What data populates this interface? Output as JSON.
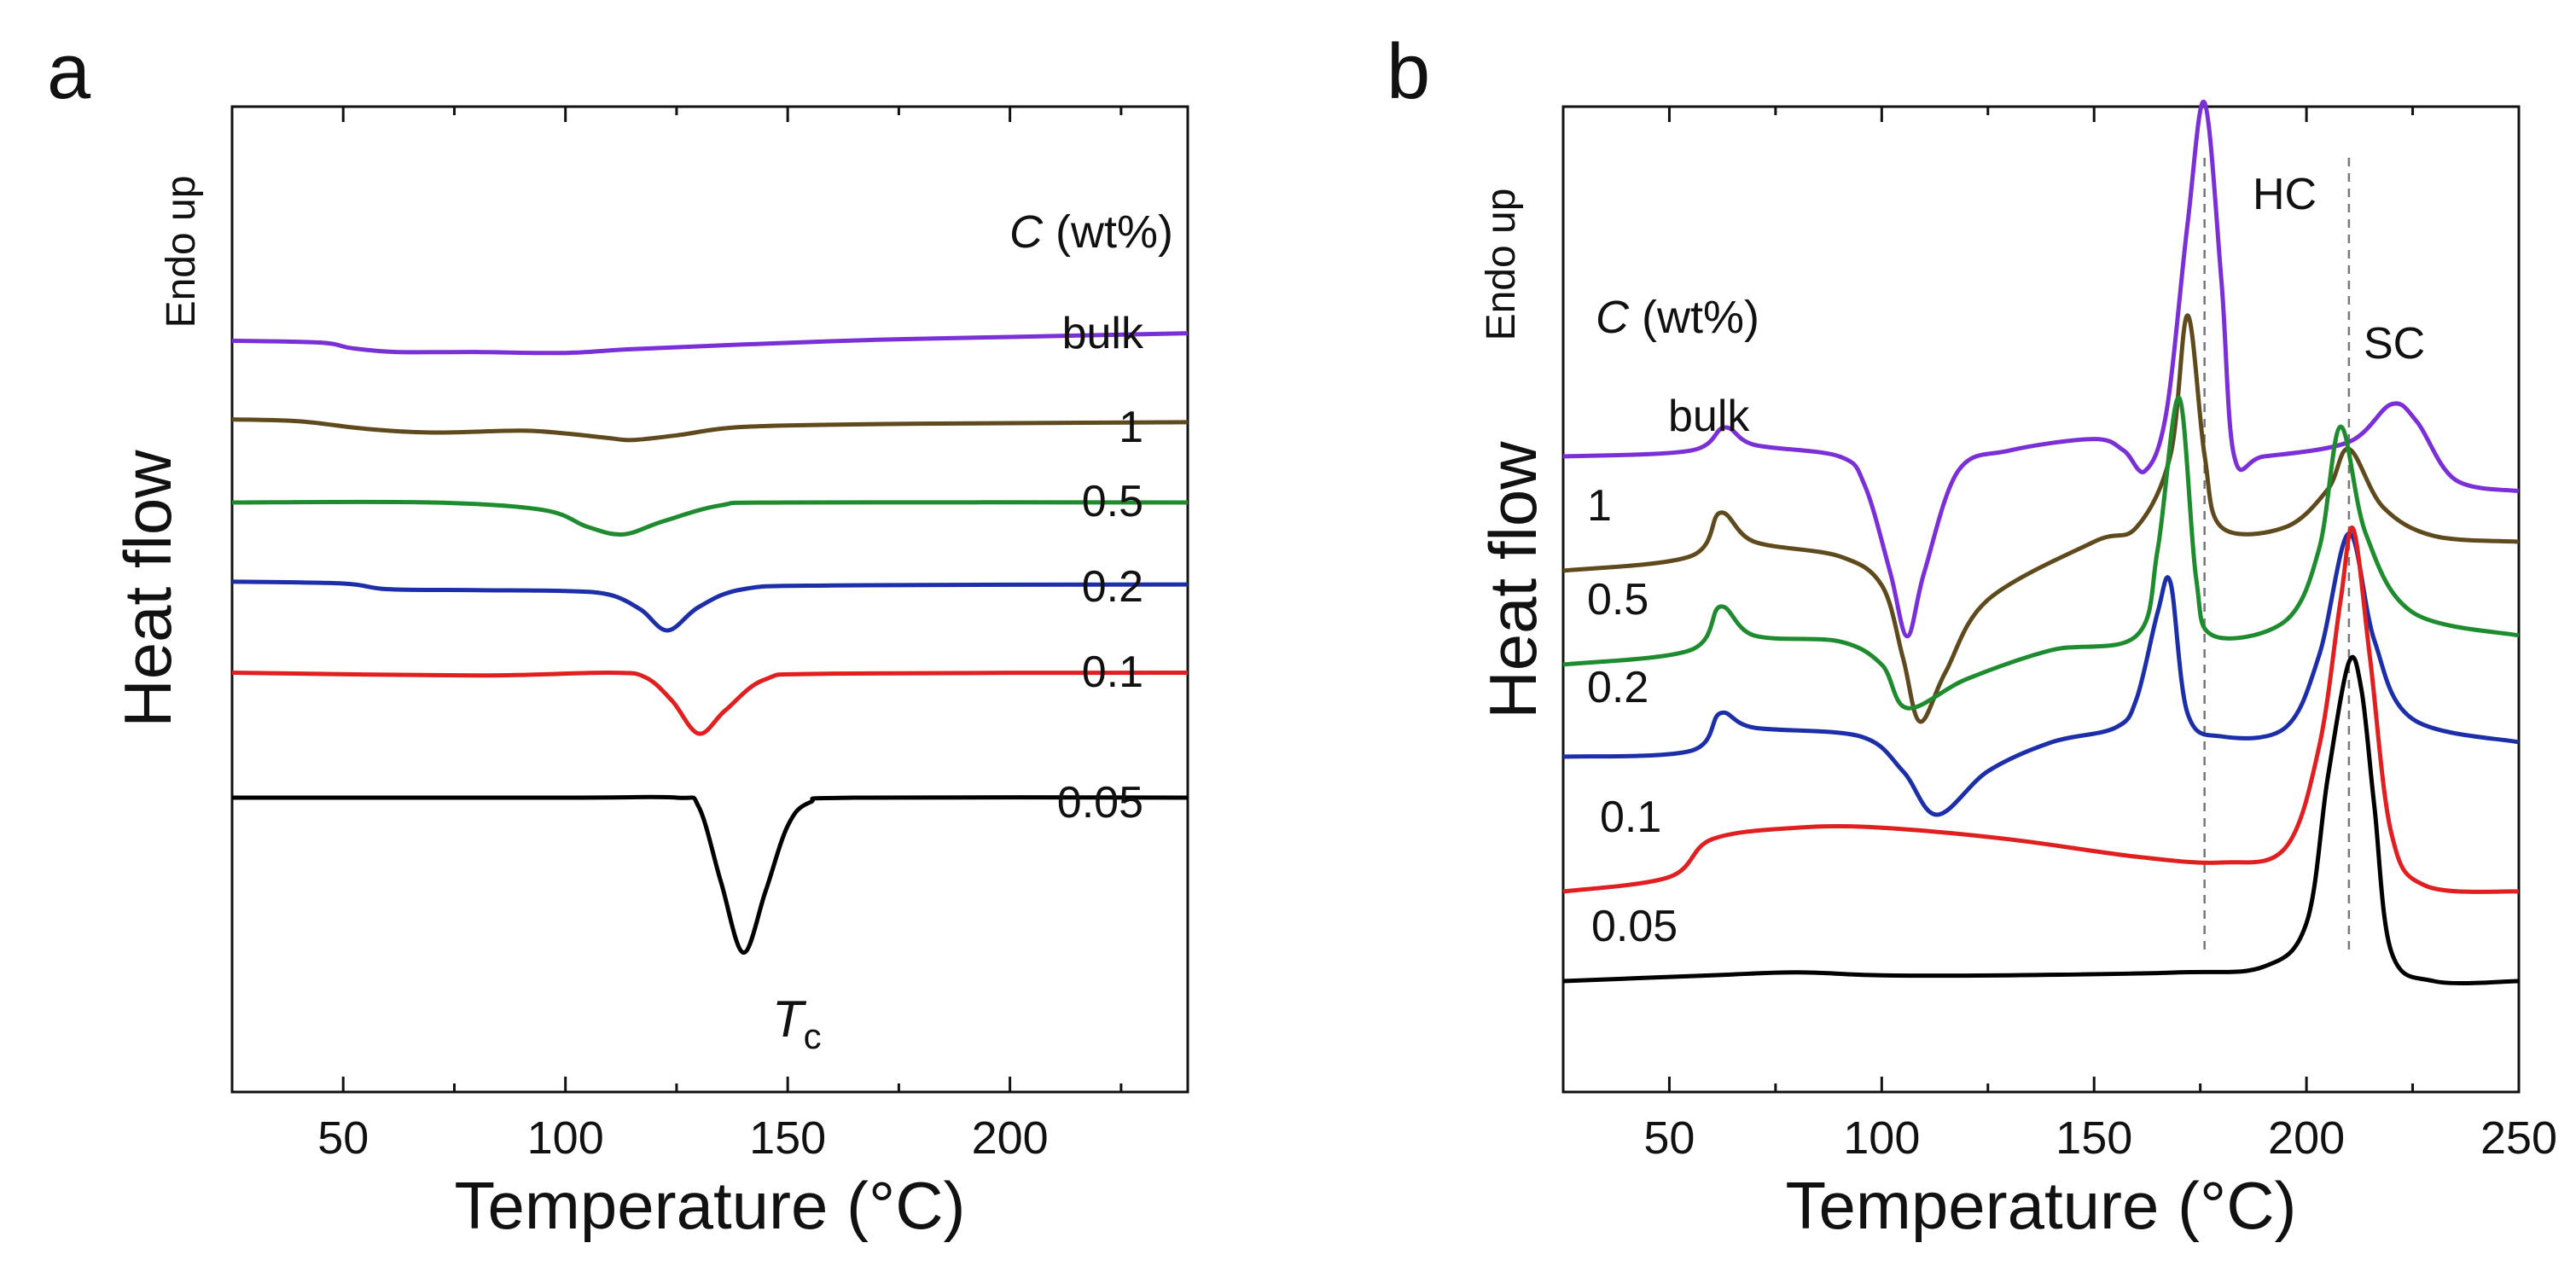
{
  "figure": {
    "panels": [
      {
        "id": "a",
        "panel_label": "a",
        "ylabel": "Heat flow",
        "endo_label": "Endo up",
        "legend_title_symbol": "C",
        "legend_title_rest": " (wt%)",
        "xlabel_main": "Temperature (",
        "xlabel_unit": "°C)",
        "annotation_main": "T",
        "annotation_sub": "c"
      },
      {
        "id": "b",
        "panel_label": "b",
        "ylabel": "Heat flow",
        "endo_label": "Endo up",
        "legend_title_symbol": "C",
        "legend_title_rest": " (wt%)",
        "xlabel_main": "Temperature (",
        "xlabel_unit": "°C)",
        "peak_labels": [
          "HC",
          "SC"
        ]
      }
    ]
  },
  "chart_data": [
    {
      "type": "line",
      "panel": "a",
      "xlabel": "Temperature (°C)",
      "ylabel": "Heat flow",
      "xlim": [
        25,
        240
      ],
      "xticks": [
        50,
        100,
        150,
        200
      ],
      "y_ticks_shown": false,
      "grid": false,
      "legend_title": "C (wt%)",
      "annotation": "Tc",
      "series": [
        {
          "name": "bulk",
          "color": "#7B2FD6",
          "points": [
            [
              25,
              0.46
            ],
            [
              45,
              0.44
            ],
            [
              52,
              0.38
            ],
            [
              62,
              0.34
            ],
            [
              80,
              0.34
            ],
            [
              100,
              0.33
            ],
            [
              115,
              0.37
            ],
            [
              140,
              0.42
            ],
            [
              170,
              0.47
            ],
            [
              200,
              0.5
            ],
            [
              240,
              0.54
            ]
          ]
        },
        {
          "name": "1",
          "color": "#5E4A1C",
          "points": [
            [
              25,
              0.44
            ],
            [
              40,
              0.42
            ],
            [
              55,
              0.34
            ],
            [
              70,
              0.3
            ],
            [
              90,
              0.32
            ],
            [
              100,
              0.29
            ],
            [
              110,
              0.24
            ],
            [
              115,
              0.22
            ],
            [
              125,
              0.27
            ],
            [
              140,
              0.36
            ],
            [
              170,
              0.39
            ],
            [
              200,
              0.4
            ],
            [
              240,
              0.41
            ]
          ]
        },
        {
          "name": "0.5",
          "color": "#1E8C2E",
          "points": [
            [
              25,
              0.4
            ],
            [
              70,
              0.4
            ],
            [
              95,
              0.32
            ],
            [
              105,
              0.14
            ],
            [
              113,
              0.06
            ],
            [
              122,
              0.2
            ],
            [
              135,
              0.37
            ],
            [
              150,
              0.4
            ],
            [
              240,
              0.4
            ]
          ]
        },
        {
          "name": "0.2",
          "color": "#1C2FA8",
          "points": [
            [
              25,
              0.42
            ],
            [
              50,
              0.4
            ],
            [
              60,
              0.34
            ],
            [
              80,
              0.33
            ],
            [
              100,
              0.32
            ],
            [
              110,
              0.28
            ],
            [
              117,
              0.12
            ],
            [
              123,
              -0.1
            ],
            [
              130,
              0.15
            ],
            [
              140,
              0.34
            ],
            [
              160,
              0.38
            ],
            [
              240,
              0.39
            ]
          ]
        },
        {
          "name": "0.1",
          "color": "#E02020",
          "points": [
            [
              25,
              0.45
            ],
            [
              80,
              0.42
            ],
            [
              110,
              0.45
            ],
            [
              118,
              0.4
            ],
            [
              124,
              0.15
            ],
            [
              130,
              -0.2
            ],
            [
              136,
              0.05
            ],
            [
              145,
              0.38
            ],
            [
              160,
              0.44
            ],
            [
              240,
              0.45
            ]
          ]
        },
        {
          "name": "0.05",
          "color": "#000000",
          "points": [
            [
              25,
              0.5
            ],
            [
              100,
              0.5
            ],
            [
              125,
              0.5
            ],
            [
              130,
              0.4
            ],
            [
              135,
              -0.4
            ],
            [
              140,
              -1.15
            ],
            [
              145,
              -0.5
            ],
            [
              150,
              0.2
            ],
            [
              155,
              0.45
            ],
            [
              165,
              0.5
            ],
            [
              240,
              0.5
            ]
          ]
        }
      ]
    },
    {
      "type": "line",
      "panel": "b",
      "xlabel": "Temperature (°C)",
      "ylabel": "Heat flow",
      "xlim": [
        25,
        250
      ],
      "xticks": [
        50,
        100,
        150,
        200,
        250
      ],
      "y_ticks_shown": false,
      "grid": false,
      "legend_title": "C (wt%)",
      "reference_lines_x": [
        176,
        210
      ],
      "series": [
        {
          "name": "bulk",
          "color": "#7B2FD6",
          "points": [
            [
              25,
              0.0
            ],
            [
              55,
              0.02
            ],
            [
              63,
              0.1
            ],
            [
              70,
              0.04
            ],
            [
              90,
              0.0
            ],
            [
              96,
              -0.1
            ],
            [
              102,
              -0.4
            ],
            [
              106,
              -0.62
            ],
            [
              110,
              -0.4
            ],
            [
              118,
              -0.05
            ],
            [
              130,
              0.02
            ],
            [
              150,
              0.06
            ],
            [
              157,
              0.02
            ],
            [
              162,
              -0.05
            ],
            [
              167,
              0.15
            ],
            [
              172,
              0.8
            ],
            [
              176,
              1.22
            ],
            [
              180,
              0.6
            ],
            [
              183,
              0.0
            ],
            [
              190,
              0.0
            ],
            [
              210,
              0.05
            ],
            [
              220,
              0.18
            ],
            [
              226,
              0.12
            ],
            [
              235,
              -0.08
            ],
            [
              250,
              -0.12
            ]
          ]
        },
        {
          "name": "1",
          "color": "#5E4A1C",
          "points": [
            [
              25,
              -0.1
            ],
            [
              55,
              -0.05
            ],
            [
              62,
              0.1
            ],
            [
              70,
              0.0
            ],
            [
              90,
              -0.05
            ],
            [
              100,
              -0.15
            ],
            [
              105,
              -0.4
            ],
            [
              109,
              -0.62
            ],
            [
              115,
              -0.45
            ],
            [
              125,
              -0.2
            ],
            [
              150,
              0.0
            ],
            [
              160,
              0.05
            ],
            [
              168,
              0.3
            ],
            [
              172,
              0.78
            ],
            [
              176,
              0.3
            ],
            [
              180,
              0.05
            ],
            [
              195,
              0.05
            ],
            [
              205,
              0.18
            ],
            [
              210,
              0.32
            ],
            [
              218,
              0.12
            ],
            [
              230,
              0.02
            ],
            [
              250,
              0.0
            ]
          ]
        },
        {
          "name": "0.5",
          "color": "#1E8C2E",
          "points": [
            [
              25,
              -0.1
            ],
            [
              55,
              -0.05
            ],
            [
              62,
              0.1
            ],
            [
              70,
              0.0
            ],
            [
              90,
              -0.02
            ],
            [
              100,
              -0.1
            ],
            [
              106,
              -0.25
            ],
            [
              120,
              -0.15
            ],
            [
              140,
              -0.05
            ],
            [
              160,
              0.0
            ],
            [
              165,
              0.3
            ],
            [
              170,
              0.82
            ],
            [
              174,
              0.2
            ],
            [
              178,
              0.0
            ],
            [
              195,
              0.05
            ],
            [
              203,
              0.3
            ],
            [
              208,
              0.72
            ],
            [
              214,
              0.35
            ],
            [
              225,
              0.08
            ],
            [
              250,
              0.0
            ]
          ]
        },
        {
          "name": "0.2",
          "color": "#1C2FA8",
          "points": [
            [
              25,
              -0.05
            ],
            [
              55,
              -0.03
            ],
            [
              62,
              0.1
            ],
            [
              70,
              0.05
            ],
            [
              95,
              0.02
            ],
            [
              105,
              -0.1
            ],
            [
              113,
              -0.25
            ],
            [
              125,
              -0.1
            ],
            [
              140,
              0.0
            ],
            [
              155,
              0.05
            ],
            [
              160,
              0.15
            ],
            [
              165,
              0.45
            ],
            [
              168,
              0.55
            ],
            [
              172,
              0.1
            ],
            [
              180,
              0.02
            ],
            [
              195,
              0.05
            ],
            [
              203,
              0.3
            ],
            [
              210,
              0.72
            ],
            [
              216,
              0.35
            ],
            [
              225,
              0.08
            ],
            [
              250,
              0.0
            ]
          ]
        },
        {
          "name": "0.1",
          "color": "#E02020",
          "points": [
            [
              25,
              0.0
            ],
            [
              50,
              0.05
            ],
            [
              60,
              0.18
            ],
            [
              80,
              0.22
            ],
            [
              100,
              0.22
            ],
            [
              130,
              0.18
            ],
            [
              160,
              0.12
            ],
            [
              180,
              0.1
            ],
            [
              195,
              0.15
            ],
            [
              203,
              0.5
            ],
            [
              208,
              1.0
            ],
            [
              211,
              1.25
            ],
            [
              215,
              0.8
            ],
            [
              220,
              0.2
            ],
            [
              228,
              0.02
            ],
            [
              250,
              0.0
            ]
          ]
        },
        {
          "name": "0.05",
          "color": "#000000",
          "points": [
            [
              25,
              0.0
            ],
            [
              60,
              0.02
            ],
            [
              80,
              0.03
            ],
            [
              100,
              0.02
            ],
            [
              130,
              0.02
            ],
            [
              170,
              0.03
            ],
            [
              190,
              0.05
            ],
            [
              200,
              0.2
            ],
            [
              205,
              0.7
            ],
            [
              210,
              1.1
            ],
            [
              213,
              1.0
            ],
            [
              216,
              0.6
            ],
            [
              220,
              0.1
            ],
            [
              230,
              0.0
            ],
            [
              250,
              0.0
            ]
          ]
        }
      ]
    }
  ]
}
